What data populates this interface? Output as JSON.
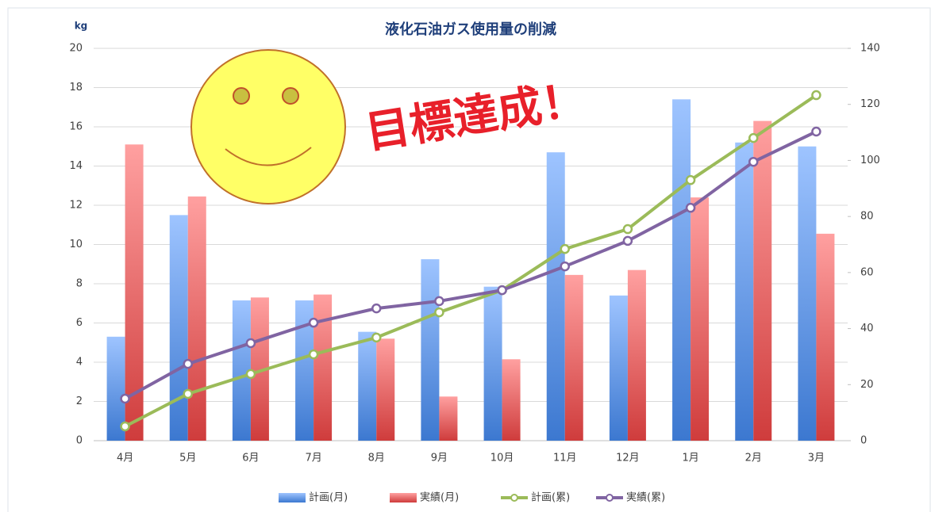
{
  "chart_data": {
    "type": "bar",
    "title": "液化石油ガス使用量の削減",
    "y_label": "kg",
    "annotation": "目標達成！",
    "categories": [
      "4月",
      "5月",
      "6月",
      "7月",
      "8月",
      "9月",
      "10月",
      "11月",
      "12月",
      "1月",
      "2月",
      "3月"
    ],
    "series": [
      {
        "name": "計画(月)",
        "type": "bar",
        "color": "#5b93e6",
        "values": [
          5.3,
          11.5,
          7.15,
          7.15,
          5.55,
          9.25,
          7.85,
          14.7,
          7.4,
          17.4,
          15.2,
          15.0
        ]
      },
      {
        "name": "実績(月)",
        "type": "bar",
        "color": "#e65b5b",
        "values": [
          15.1,
          12.45,
          7.3,
          7.45,
          5.2,
          2.25,
          4.15,
          8.45,
          8.7,
          12.4,
          16.3,
          10.55
        ]
      },
      {
        "name": "計画(累)",
        "type": "line",
        "axis": "y2",
        "color": "#9bbb59",
        "values": [
          5.1,
          16.7,
          23.8,
          30.8,
          36.8,
          45.8,
          53.7,
          68.4,
          75.5,
          93.0,
          108.0,
          123.3
        ]
      },
      {
        "name": "実績(累)",
        "type": "line",
        "axis": "y2",
        "color": "#8064a2",
        "values": [
          15.0,
          27.4,
          34.8,
          42.1,
          47.2,
          49.8,
          53.7,
          62.2,
          71.3,
          83.1,
          99.5,
          110.3
        ]
      }
    ],
    "ylim": [
      0,
      20
    ],
    "yticks": [
      0,
      2,
      4,
      6,
      8,
      10,
      12,
      14,
      16,
      18,
      20
    ],
    "y2lim": [
      0,
      140
    ],
    "y2ticks": [
      0,
      20,
      40,
      60,
      80,
      100,
      120,
      140
    ],
    "grid": true,
    "legend": "bottom"
  }
}
